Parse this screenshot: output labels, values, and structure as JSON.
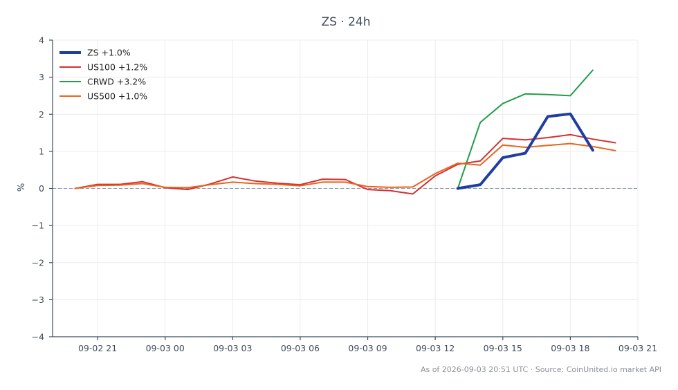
{
  "chart_data": {
    "type": "line",
    "title": "ZS · 24h",
    "xlabel": "",
    "ylabel": "%",
    "ylim": [
      -4,
      4
    ],
    "yticks": [
      -4,
      -3,
      -2,
      -1,
      0,
      1,
      2,
      3,
      4
    ],
    "ytick_labels": [
      "−4",
      "−3",
      "−2",
      "−1",
      "0",
      "1",
      "2",
      "3",
      "4"
    ],
    "xlim": [
      "2026-09-02 19:00",
      "2026-09-03 21:00"
    ],
    "xticks": [
      "2026-09-02 21:00",
      "2026-09-03 00:00",
      "2026-09-03 03:00",
      "2026-09-03 06:00",
      "2026-09-03 09:00",
      "2026-09-03 12:00",
      "2026-09-03 15:00",
      "2026-09-03 18:00",
      "2026-09-03 21:00"
    ],
    "xtick_labels": [
      "09-02 21",
      "09-03 00",
      "09-03 03",
      "09-03 06",
      "09-03 09",
      "09-03 12",
      "09-03 15",
      "09-03 18",
      "09-03 21"
    ],
    "grid": true,
    "reference_line": {
      "y": 0,
      "style": "dashed"
    },
    "legend_position": "top-left",
    "series": [
      {
        "name": "ZS +1.0%",
        "color": "#1f3fa0",
        "emphasis": true,
        "x": [
          "2026-09-03 13:00",
          "2026-09-03 14:00",
          "2026-09-03 15:00",
          "2026-09-03 16:00",
          "2026-09-03 17:00",
          "2026-09-03 18:00",
          "2026-09-03 19:00"
        ],
        "values": [
          0.0,
          0.1,
          0.83,
          0.95,
          1.94,
          2.01,
          1.03
        ]
      },
      {
        "name": "US100 +1.2%",
        "color": "#d62f2f",
        "emphasis": false,
        "x": [
          "2026-09-02 20:00",
          "2026-09-02 21:00",
          "2026-09-02 22:00",
          "2026-09-02 23:00",
          "2026-09-03 00:00",
          "2026-09-03 01:00",
          "2026-09-03 02:00",
          "2026-09-03 03:00",
          "2026-09-03 04:00",
          "2026-09-03 05:00",
          "2026-09-03 06:00",
          "2026-09-03 07:00",
          "2026-09-03 08:00",
          "2026-09-03 09:00",
          "2026-09-03 10:00",
          "2026-09-03 11:00",
          "2026-09-03 12:00",
          "2026-09-03 13:00",
          "2026-09-03 14:00",
          "2026-09-03 15:00",
          "2026-09-03 16:00",
          "2026-09-03 17:00",
          "2026-09-03 18:00",
          "2026-09-03 19:00",
          "2026-09-03 20:00"
        ],
        "values": [
          0.0,
          0.11,
          0.11,
          0.18,
          0.02,
          -0.03,
          0.12,
          0.31,
          0.2,
          0.14,
          0.1,
          0.25,
          0.24,
          -0.03,
          -0.06,
          -0.15,
          0.34,
          0.65,
          0.74,
          1.35,
          1.31,
          1.37,
          1.45,
          1.33,
          1.23
        ]
      },
      {
        "name": "CRWD +3.2%",
        "color": "#1f9e46",
        "emphasis": false,
        "x": [
          "2026-09-03 13:00",
          "2026-09-03 14:00",
          "2026-09-03 15:00",
          "2026-09-03 16:00",
          "2026-09-03 17:00",
          "2026-09-03 18:00",
          "2026-09-03 19:00"
        ],
        "values": [
          0.0,
          1.78,
          2.29,
          2.55,
          2.53,
          2.5,
          3.19
        ]
      },
      {
        "name": "US500 +1.0%",
        "color": "#e8641c",
        "emphasis": false,
        "x": [
          "2026-09-02 20:00",
          "2026-09-02 21:00",
          "2026-09-02 22:00",
          "2026-09-02 23:00",
          "2026-09-03 00:00",
          "2026-09-03 01:00",
          "2026-09-03 02:00",
          "2026-09-03 03:00",
          "2026-09-03 04:00",
          "2026-09-03 05:00",
          "2026-09-03 06:00",
          "2026-09-03 07:00",
          "2026-09-03 08:00",
          "2026-09-03 09:00",
          "2026-09-03 10:00",
          "2026-09-03 11:00",
          "2026-09-03 12:00",
          "2026-09-03 13:00",
          "2026-09-03 14:00",
          "2026-09-03 15:00",
          "2026-09-03 16:00",
          "2026-09-03 17:00",
          "2026-09-03 18:00",
          "2026-09-03 19:00",
          "2026-09-03 20:00"
        ],
        "values": [
          0.0,
          0.08,
          0.09,
          0.13,
          0.03,
          0.02,
          0.1,
          0.17,
          0.13,
          0.11,
          0.07,
          0.17,
          0.17,
          0.05,
          0.03,
          0.04,
          0.4,
          0.68,
          0.63,
          1.17,
          1.11,
          1.16,
          1.21,
          1.13,
          1.02
        ]
      }
    ],
    "source_note": "As of 2026-09-03 20:51 UTC · Source: CoinUnited.io market API"
  }
}
